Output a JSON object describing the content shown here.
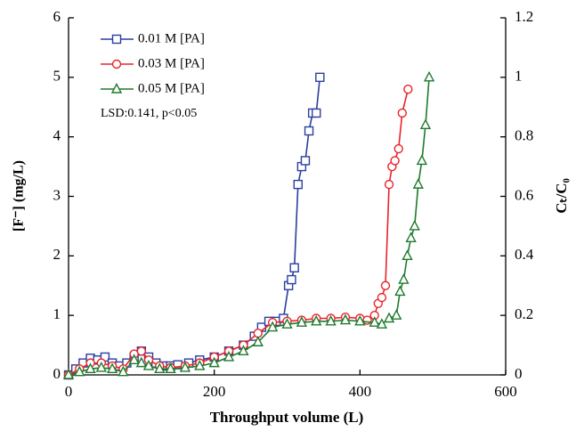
{
  "chart_data": {
    "type": "line",
    "xlabel": "Throughput volume (L)",
    "ylabel": "[F⁻] (mg/L)",
    "y2label": "Cₜ/C₀",
    "annotation": "LSD:0.141, p<0.05",
    "xlim": [
      0,
      600
    ],
    "xticks": [
      0,
      200,
      400,
      600
    ],
    "ylim": [
      0,
      6
    ],
    "yticks": [
      0,
      1,
      2,
      3,
      4,
      5,
      6
    ],
    "y2lim": [
      0,
      1.2
    ],
    "y2ticks": [
      0,
      0.2,
      0.4,
      0.6,
      0.8,
      1,
      1.2
    ],
    "legend": "upper left",
    "series": [
      {
        "name": "0.01 M [PA]",
        "color": "#2b3f9e",
        "marker": "square",
        "x": [
          0,
          10,
          20,
          30,
          40,
          50,
          60,
          70,
          80,
          90,
          100,
          110,
          120,
          130,
          140,
          150,
          165,
          180,
          200,
          220,
          240,
          255,
          265,
          275,
          285,
          295,
          302,
          306,
          310,
          315,
          320,
          325,
          330,
          335,
          340,
          345
        ],
        "values": [
          0,
          0.1,
          0.2,
          0.28,
          0.25,
          0.3,
          0.2,
          0.15,
          0.2,
          0.3,
          0.4,
          0.3,
          0.2,
          0.15,
          0.15,
          0.17,
          0.2,
          0.25,
          0.3,
          0.4,
          0.5,
          0.65,
          0.8,
          0.9,
          0.9,
          0.95,
          1.5,
          1.6,
          1.8,
          3.2,
          3.5,
          3.6,
          4.1,
          4.4,
          4.4,
          5.0
        ]
      },
      {
        "name": "0.03 M [PA]",
        "color": "#e8232a",
        "marker": "circle",
        "x": [
          0,
          15,
          30,
          45,
          60,
          75,
          90,
          100,
          110,
          125,
          140,
          160,
          180,
          200,
          220,
          240,
          260,
          280,
          300,
          320,
          340,
          360,
          380,
          400,
          410,
          420,
          425,
          430,
          435,
          440,
          444,
          448,
          453,
          458,
          466
        ],
        "values": [
          0,
          0.1,
          0.2,
          0.2,
          0.15,
          0.1,
          0.35,
          0.4,
          0.25,
          0.15,
          0.12,
          0.15,
          0.2,
          0.3,
          0.4,
          0.5,
          0.7,
          0.88,
          0.9,
          0.92,
          0.95,
          0.95,
          0.97,
          0.95,
          0.92,
          1.0,
          1.2,
          1.3,
          1.5,
          3.2,
          3.5,
          3.6,
          3.8,
          4.4,
          4.8
        ]
      },
      {
        "name": "0.05 M [PA]",
        "color": "#1e7a2e",
        "marker": "triangle",
        "x": [
          0,
          15,
          30,
          45,
          60,
          75,
          90,
          100,
          110,
          125,
          140,
          160,
          180,
          200,
          220,
          240,
          260,
          280,
          300,
          320,
          340,
          360,
          380,
          400,
          420,
          430,
          440,
          450,
          455,
          460,
          465,
          470,
          475,
          480,
          485,
          490,
          495
        ],
        "values": [
          0,
          0.05,
          0.1,
          0.12,
          0.1,
          0.05,
          0.25,
          0.2,
          0.15,
          0.1,
          0.1,
          0.12,
          0.15,
          0.2,
          0.3,
          0.4,
          0.55,
          0.8,
          0.85,
          0.88,
          0.9,
          0.9,
          0.92,
          0.9,
          0.88,
          0.85,
          0.95,
          1.0,
          1.4,
          1.6,
          2.0,
          2.3,
          2.5,
          3.2,
          3.6,
          4.2,
          5.0
        ]
      }
    ]
  }
}
